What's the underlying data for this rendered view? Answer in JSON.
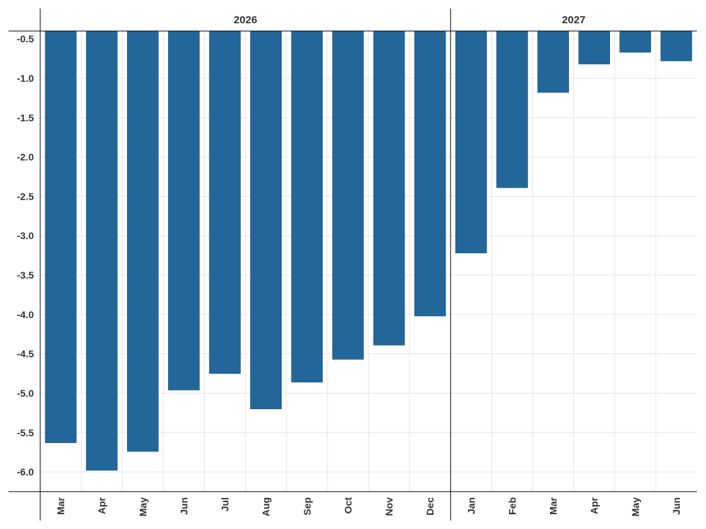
{
  "chart_data": {
    "type": "bar",
    "ylim": [
      -6.25,
      -0.4
    ],
    "yticks": [
      -0.5,
      -1.0,
      -1.5,
      -2.0,
      -2.5,
      -3.0,
      -3.5,
      -4.0,
      -4.5,
      -5.0,
      -5.5,
      -6.0
    ],
    "ytick_labels": [
      "-0.5",
      "-1.0",
      "-1.5",
      "-2.0",
      "-2.5",
      "-3.0",
      "-3.5",
      "-4.0",
      "-4.5",
      "-5.0",
      "-5.5",
      "-6.0"
    ],
    "baseline": -0.4,
    "grid": true,
    "bar_color": "#236699",
    "panels": [
      {
        "label": "2026",
        "categories": [
          "Mar",
          "Apr",
          "May",
          "Jun",
          "Jul",
          "Aug",
          "Sep",
          "Oct",
          "Nov",
          "Dec"
        ],
        "values": [
          -5.63,
          -5.98,
          -5.74,
          -4.96,
          -4.75,
          -5.2,
          -4.86,
          -4.57,
          -4.39,
          -4.02
        ]
      },
      {
        "label": "2027",
        "categories": [
          "Jan",
          "Feb",
          "Mar",
          "Apr",
          "May",
          "Jun"
        ],
        "values": [
          -3.22,
          -2.39,
          -1.18,
          -0.82,
          -0.67,
          -0.78
        ]
      }
    ]
  }
}
